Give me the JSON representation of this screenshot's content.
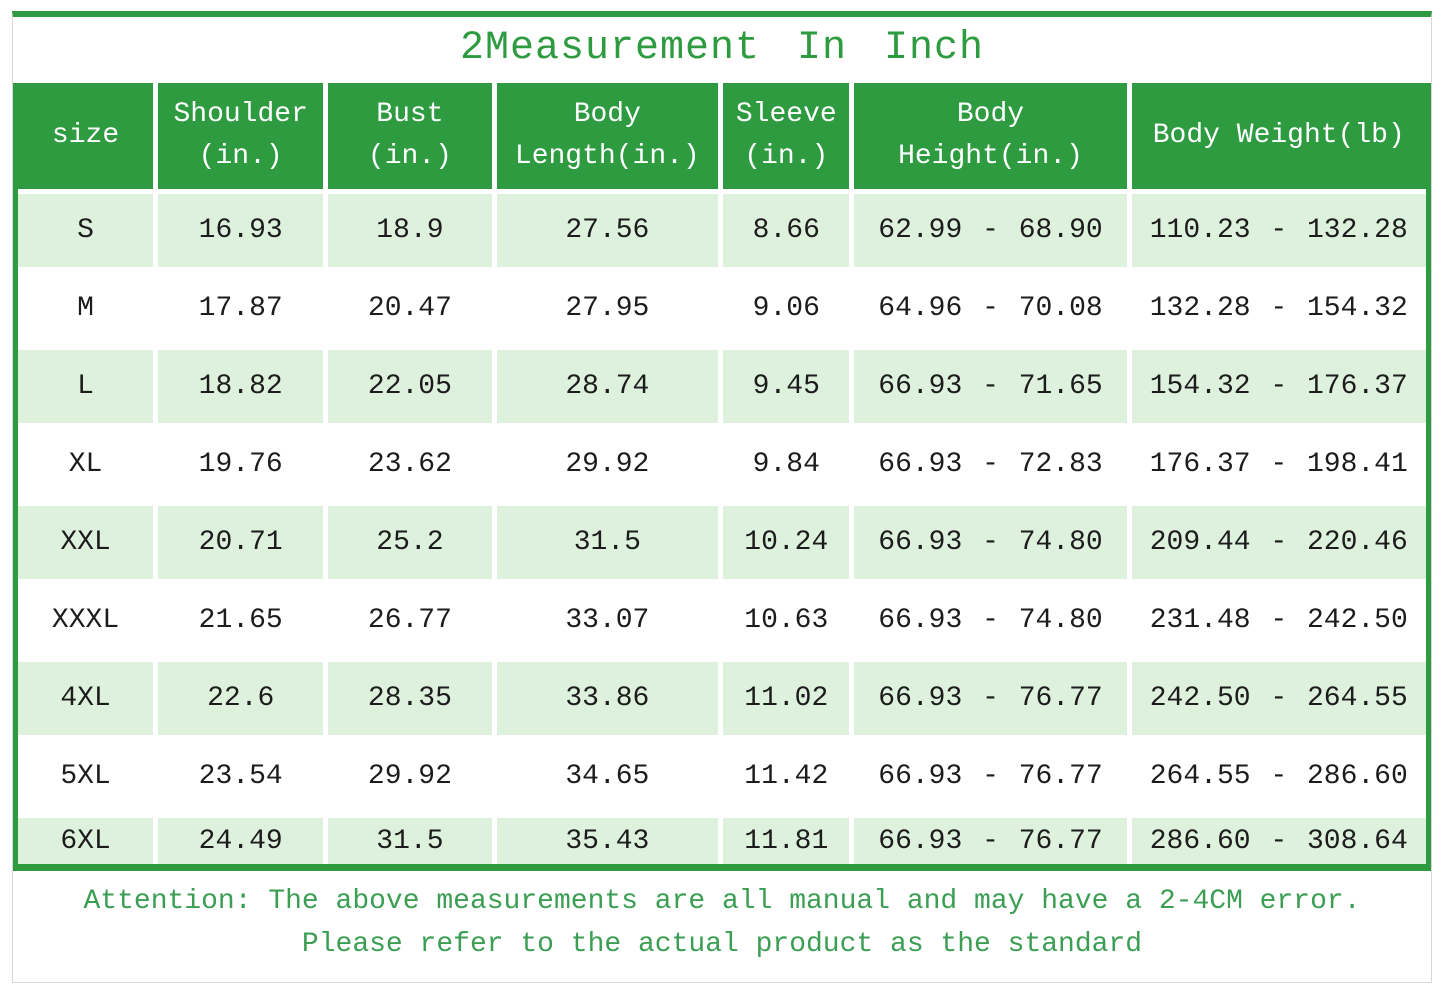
{
  "title": "2Measurement In Inch",
  "colors": {
    "green": "#2E9B41",
    "row_green": "#DDF1DC",
    "text": "#1C1C1C",
    "note_green": "#3B9E53"
  },
  "table": {
    "header_lines": [
      [
        "size"
      ],
      [
        "Shoulder",
        "(in.)"
      ],
      [
        "Bust",
        "(in.)"
      ],
      [
        "Body",
        "Length(in.)"
      ],
      [
        "Sleeve",
        "(in.)"
      ],
      [
        "Body",
        "Height(in.)"
      ],
      [
        "Body Weight(lb)"
      ]
    ]
  },
  "chart_data": {
    "type": "table",
    "title": "2Measurement In Inch",
    "columns": [
      "size",
      "Shoulder (in.)",
      "Bust (in.)",
      "Body Length(in.)",
      "Sleeve (in.)",
      "Body Height(in.)",
      "Body Weight(lb)"
    ],
    "rows": [
      [
        "S",
        "16.93",
        "18.9",
        "27.56",
        "8.66",
        "62.99 - 68.90",
        "110.23 - 132.28"
      ],
      [
        "M",
        "17.87",
        "20.47",
        "27.95",
        "9.06",
        "64.96 - 70.08",
        "132.28 - 154.32"
      ],
      [
        "L",
        "18.82",
        "22.05",
        "28.74",
        "9.45",
        "66.93 - 71.65",
        "154.32 - 176.37"
      ],
      [
        "XL",
        "19.76",
        "23.62",
        "29.92",
        "9.84",
        "66.93 - 72.83",
        "176.37 - 198.41"
      ],
      [
        "XXL",
        "20.71",
        "25.2",
        "31.5",
        "10.24",
        "66.93 - 74.80",
        "209.44 - 220.46"
      ],
      [
        "XXXL",
        "21.65",
        "26.77",
        "33.07",
        "10.63",
        "66.93 - 74.80",
        "231.48 - 242.50"
      ],
      [
        "4XL",
        "22.6",
        "28.35",
        "33.86",
        "11.02",
        "66.93 - 76.77",
        "242.50 - 264.55"
      ],
      [
        "5XL",
        "23.54",
        "29.92",
        "34.65",
        "11.42",
        "66.93 - 76.77",
        "264.55 - 286.60"
      ],
      [
        "6XL",
        "24.49",
        "31.5",
        "35.43",
        "11.81",
        "66.93 - 76.77",
        "286.60 - 308.64"
      ]
    ]
  },
  "attention": {
    "line1": "Attention: The above measurements are all manual and may have a 2-4CM error.",
    "line2": "Please refer to the actual product as the standard"
  }
}
